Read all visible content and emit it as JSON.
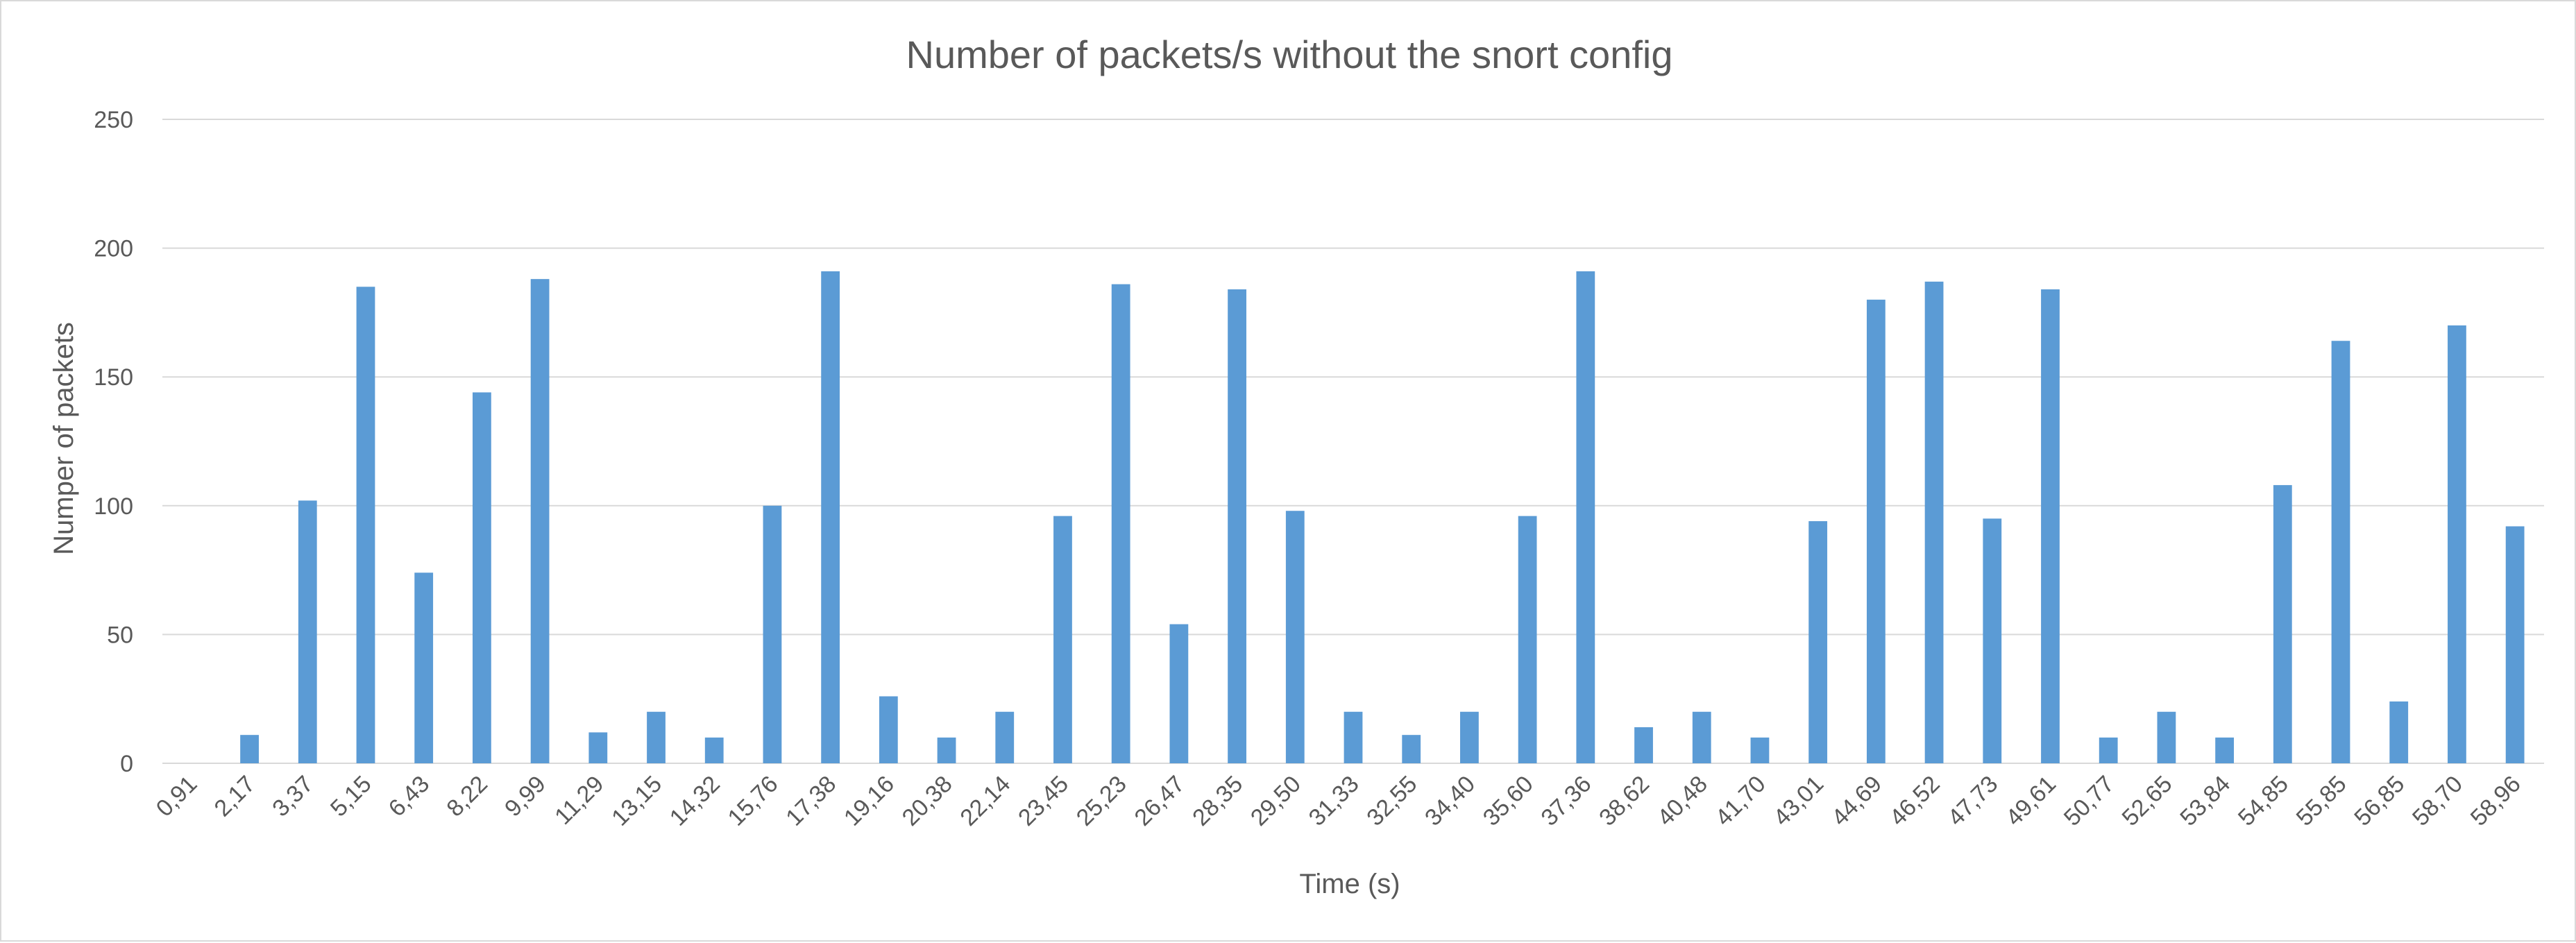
{
  "chart_data": {
    "type": "bar",
    "title": "Number of packets/s without the snort config",
    "xlabel": "Time (s)",
    "ylabel": "Numper of packets",
    "ylim": [
      0,
      250
    ],
    "yticks": [
      0,
      50,
      100,
      150,
      200,
      250
    ],
    "grid": true,
    "bar_color": "#5b9bd5",
    "categories": [
      "0,91",
      "2,17",
      "3,37",
      "5,15",
      "6,43",
      "8,22",
      "9,99",
      "11,29",
      "13,15",
      "14,32",
      "15,76",
      "17,38",
      "19,16",
      "20,38",
      "22,14",
      "23,45",
      "25,23",
      "26,47",
      "28,35",
      "29,50",
      "31,33",
      "32,55",
      "34,40",
      "35,60",
      "37,36",
      "38,62",
      "40,48",
      "41,70",
      "43,01",
      "44,69",
      "46,52",
      "47,73",
      "49,61",
      "50,77",
      "52,65",
      "53,84",
      "54,85",
      "55,85",
      "56,85",
      "58,70",
      "58,96"
    ],
    "values": [
      0,
      11,
      102,
      185,
      74,
      144,
      188,
      12,
      20,
      10,
      100,
      191,
      26,
      10,
      20,
      96,
      186,
      54,
      184,
      98,
      20,
      11,
      20,
      96,
      191,
      14,
      20,
      10,
      94,
      180,
      187,
      95,
      184,
      10,
      20,
      10,
      108,
      164,
      24,
      170,
      92
    ]
  }
}
